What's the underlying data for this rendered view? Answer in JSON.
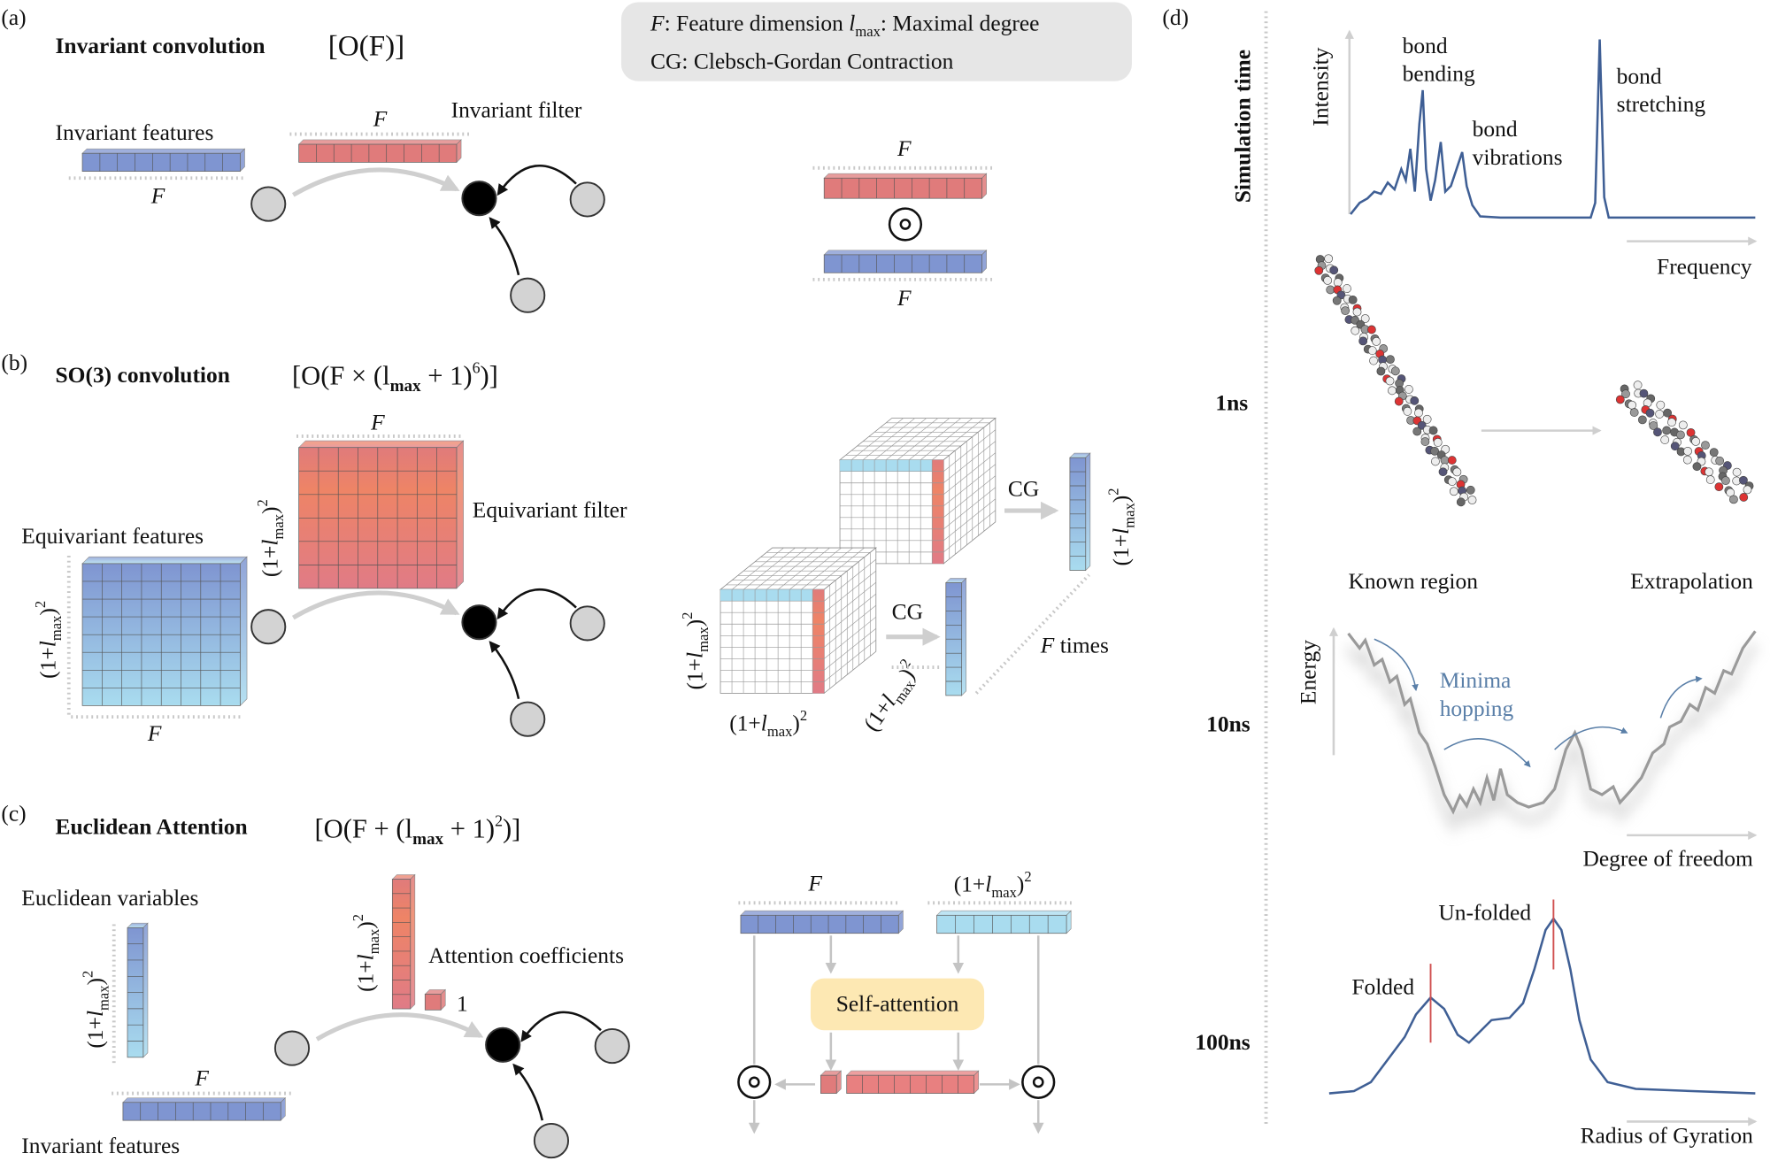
{
  "legend": {
    "line1_F": "F",
    "line1_text": ": Feature dimension ",
    "line1_l": "l",
    "line1_sub": "max",
    "line1_rest": ": Maximal degree",
    "line2": "CG: Clebsch-Gordan Contraction"
  },
  "dim": {
    "open": "(1+",
    "l": "l",
    "sub": "max",
    "close": ")",
    "sup": "2"
  },
  "F": "F",
  "panel_a": {
    "tag": "(a)",
    "title": "Invariant convolution",
    "complexity": "[O(F)]",
    "invariant_features": "Invariant features",
    "invariant_filter": "Invariant filter"
  },
  "panel_b": {
    "tag": "(b)",
    "title": "SO(3) convolution",
    "complexity": {
      "pre": "[O(F × (l",
      "sub": "max",
      "mid": " + 1)",
      "sup": "6",
      "post": ")]"
    },
    "equivariant_features": "Equivariant features",
    "equivariant_filter": "Equivariant filter",
    "cg": "CG",
    "f_times": "times"
  },
  "panel_c": {
    "tag": "(c)",
    "title": "Euclidean Attention",
    "complexity": {
      "pre": "[O(F + (l",
      "sub": "max",
      "mid": " + 1)",
      "sup": "2",
      "post": ")]"
    },
    "euclidean_variables": "Euclidean variables",
    "attention_coefficients": "Attention coefficients",
    "one": "1",
    "invariant_features": "Invariant features",
    "self_attention": "Self-attention"
  },
  "panel_d": {
    "tag": "(d)",
    "simulation_time": "Simulation time",
    "times": [
      "1ns",
      "10ns",
      "100ns"
    ],
    "spectrum": {
      "ylabel": "Intensity",
      "xlabel": "Frequency",
      "bond_bending": [
        "bond",
        "bending"
      ],
      "bond_vibrations": [
        "bond",
        "vibrations"
      ],
      "bond_stretching": [
        "bond",
        "stretching"
      ]
    },
    "known_region": "Known region",
    "extrapolation": "Extrapolation",
    "energy": {
      "ylabel": "Energy",
      "xlabel": "Degree of freedom",
      "minima_hopping": [
        "Minima",
        "hopping"
      ]
    },
    "gyration": {
      "xlabel": "Radius of Gyration",
      "folded": "Folded",
      "unfolded": "Un-folded"
    }
  },
  "colors": {
    "blue": "#7f95d1",
    "red": "#e07b7b",
    "cyan": "#a9dcef",
    "curve": "#3f5f95",
    "energy_curve": "#9a9a9a",
    "minima_text": "#5a7fa8",
    "self_attention_bg": "#fde8b3",
    "legend_bg": "#e6e6e6",
    "peak_marker": "#d05050"
  }
}
